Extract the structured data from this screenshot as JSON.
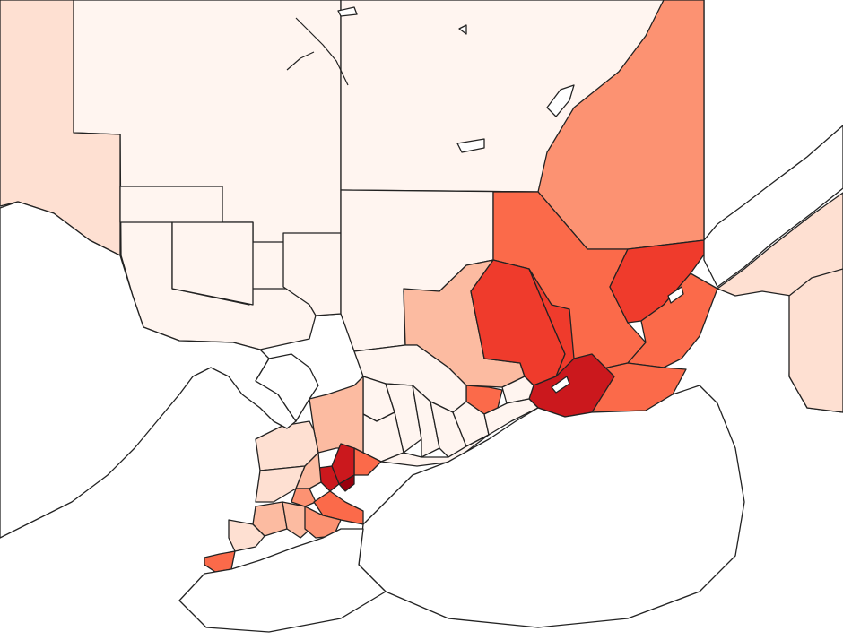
{
  "map": {
    "type": "choropleth",
    "color_scale": [
      "#fff5f0",
      "#fee0d2",
      "#fcbba1",
      "#fc9272",
      "#fb6a4a",
      "#ef3b2c",
      "#cb181d",
      "#99000d"
    ],
    "background_color": "#ffffff",
    "border_color": "#222222",
    "levels": {
      "n-ont-west": 0,
      "far-west-strip": 1,
      "nw-block-a": 0,
      "nw-block-b": 0,
      "nw-block-c": 0,
      "north-central": 0,
      "central-north": 0,
      "quebec-north": 3,
      "quebec-laurentians": 4,
      "outaouais": 2,
      "quebec-mid-1": 5,
      "quebec-mid-2": 5,
      "quebec-city-region": 5,
      "quebec-east": 4,
      "quebec-south": 4,
      "montreal-region": 6,
      "eastern-ontario-small": 0,
      "ottawa-area": 4,
      "lower-st-lawrence": 1,
      "gaspe": 1,
      "georgian-bay": 2,
      "muskoka": 0,
      "haliburton": 0,
      "central-ont-1": 0,
      "central-ont-2": 0,
      "central-ont-3": 0,
      "central-ont-4": 0,
      "central-ont-5": 0,
      "lake-ontario-shore": 0,
      "eastern-ont": 0,
      "halton": 6,
      "toronto": 7,
      "peel": 6,
      "york-durham": 4,
      "sw-ont-1": 1,
      "sw-ont-2": 2,
      "sw-ont-3": 3,
      "sw-ont-4": 2,
      "hamilton": 4,
      "niagara": 3,
      "london-area": 2,
      "lambton": 1,
      "essex-windsor": 4,
      "bruce-grey": 1
    }
  }
}
